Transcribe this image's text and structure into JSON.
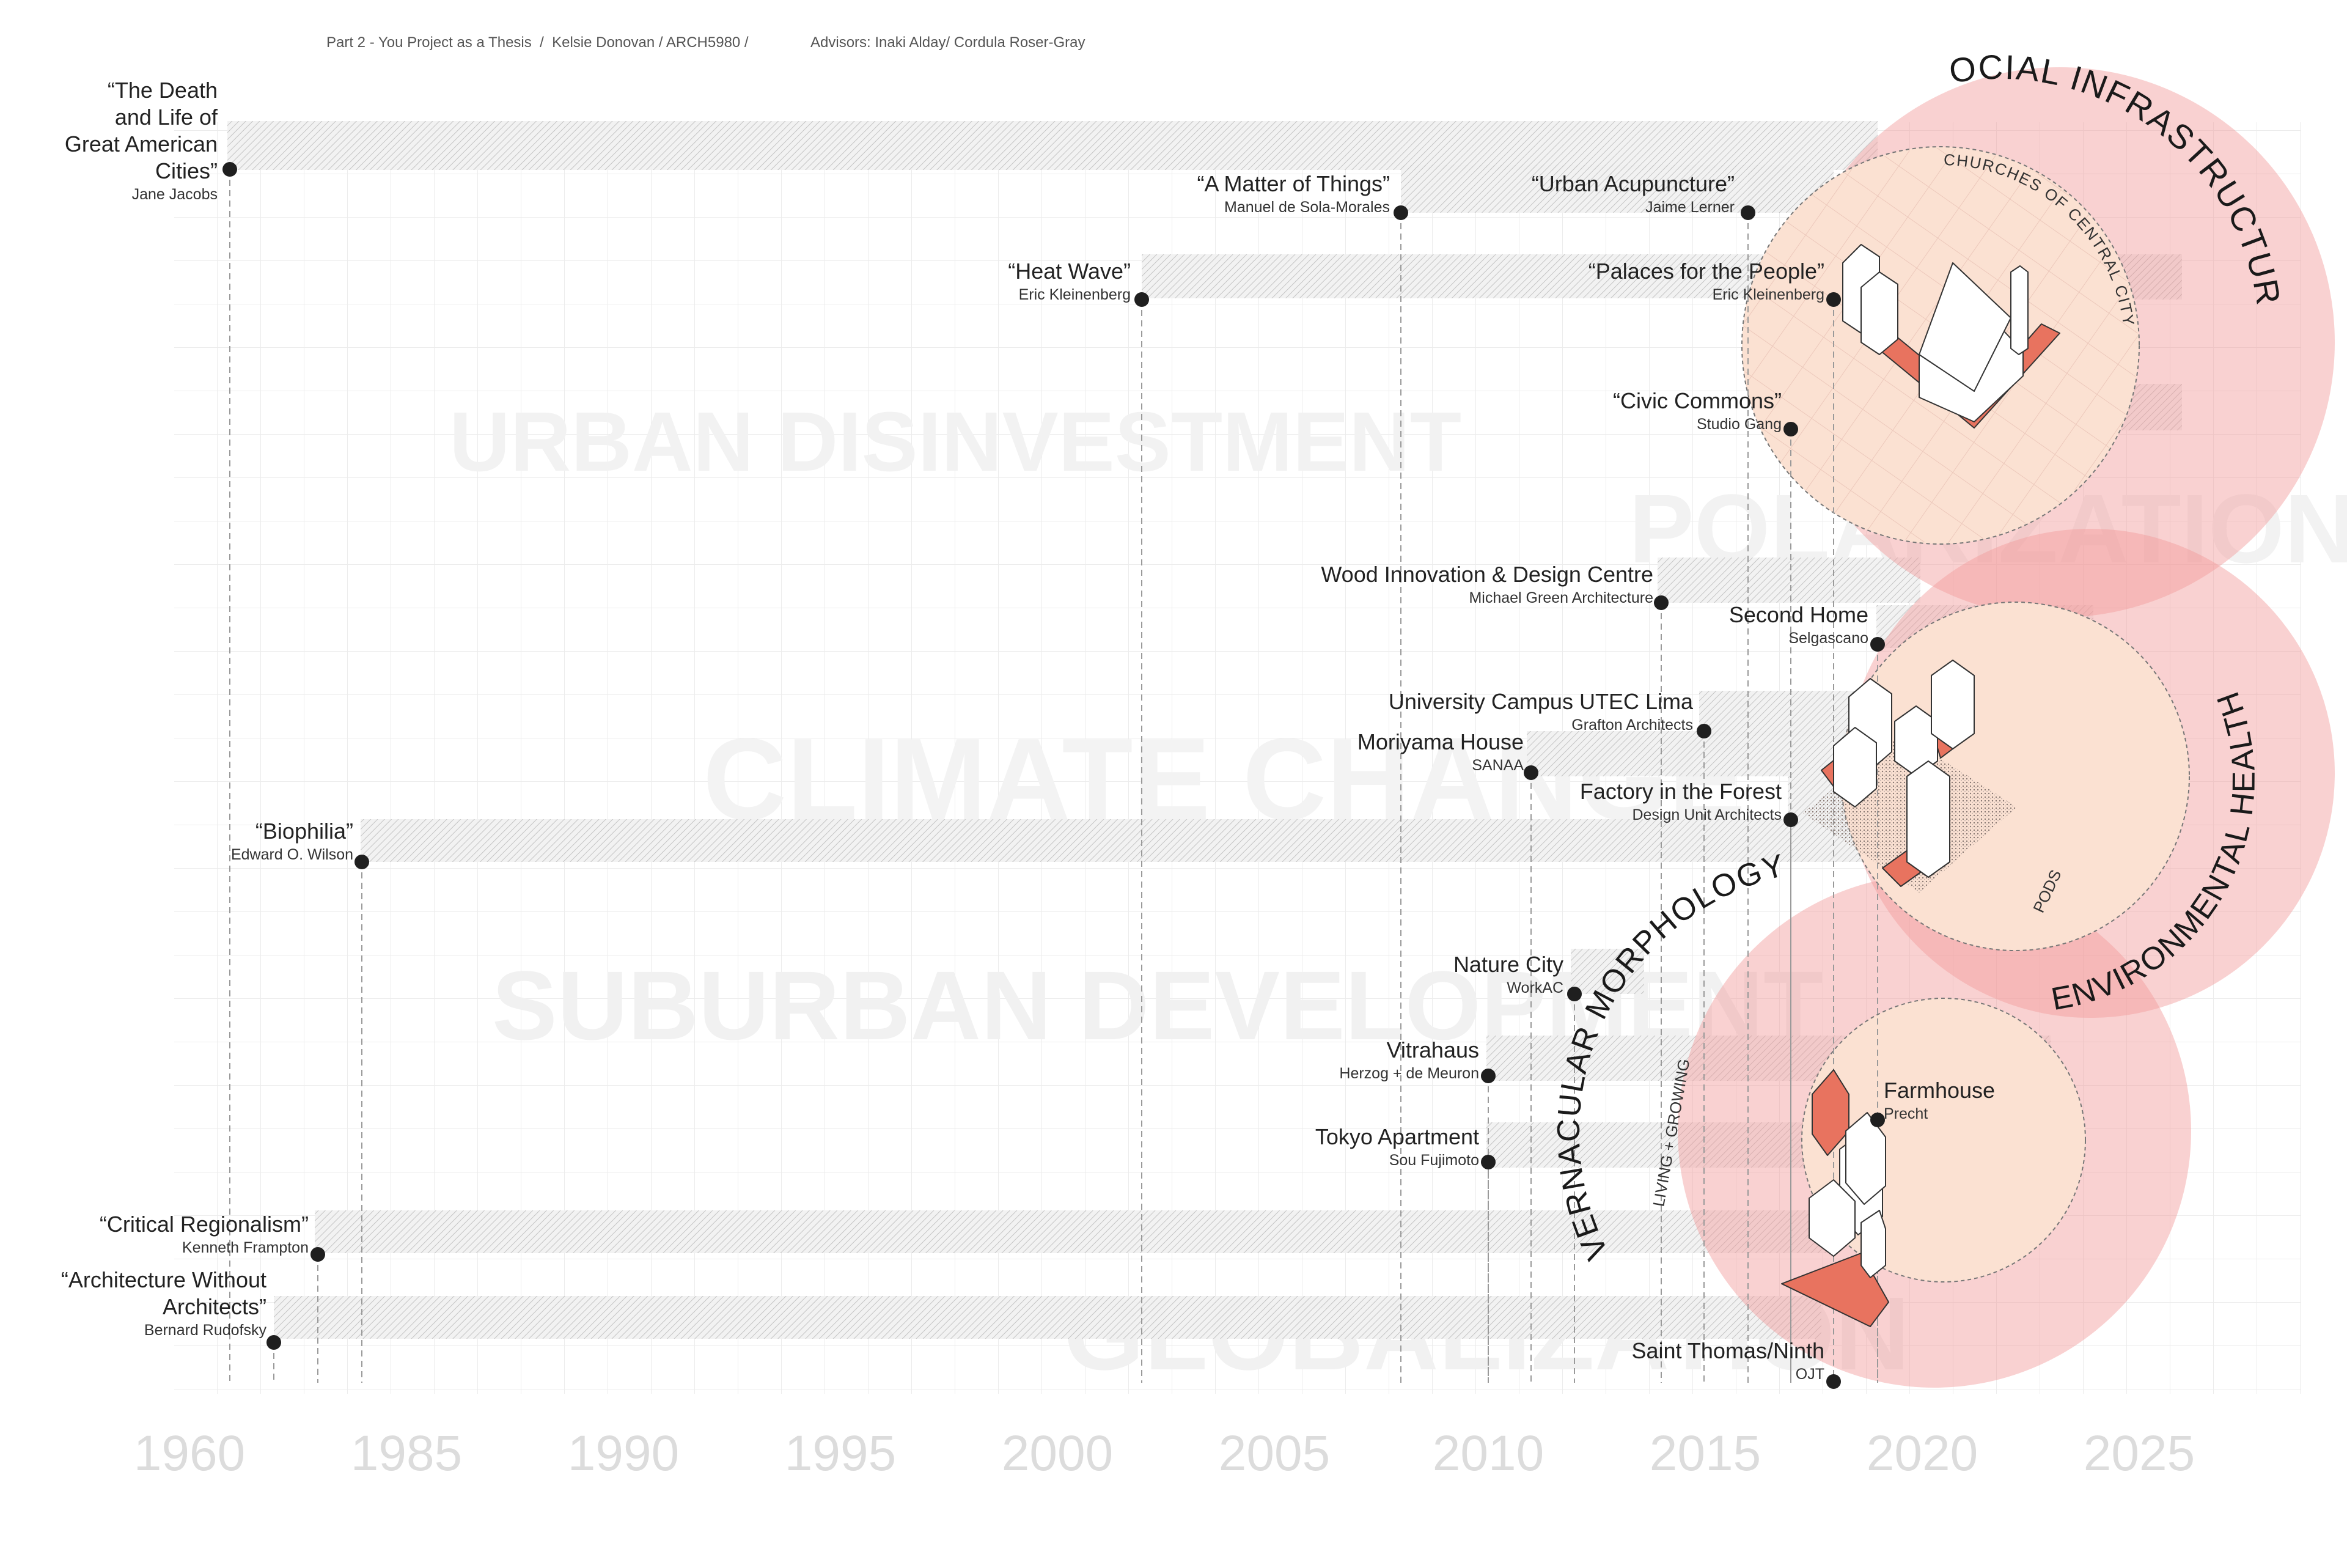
{
  "header": {
    "part": "Part 2 - You Project as a Thesis  /  Kelsie Donovan / ARCH5980 /",
    "advisors": "Advisors: Inaki Alday/ Cordula Roser-Gray"
  },
  "axis": {
    "ticks": [
      "1960",
      "1985",
      "1990",
      "1995",
      "2000",
      "2005",
      "2010",
      "2015",
      "2020",
      "2025"
    ]
  },
  "themes": [
    {
      "id": "urban",
      "text": "URBAN  DISINVESTMENT"
    },
    {
      "id": "polar",
      "text": "POLARIZATION"
    },
    {
      "id": "climate",
      "text": "CLIMATE  CHANGE"
    },
    {
      "id": "suburban",
      "text": "SUBURBAN  DEVELOPMENT"
    },
    {
      "id": "global",
      "text": "GLOBALIZATION"
    }
  ],
  "circles": [
    {
      "id": "social",
      "title": "SOCIAL  INFRASTRUCTURE",
      "subtitle": "CHURCHES  OF  CENTRAL  CITY"
    },
    {
      "id": "env",
      "title": "ENVIRONMENTAL  HEALTH",
      "subtitle": "PODS"
    },
    {
      "id": "vern",
      "title": "VERNACULAR  MORPHOLOGY",
      "subtitle": "LIVING + GROWING"
    }
  ],
  "items": [
    {
      "id": "death",
      "title_lines": [
        "“The Death",
        "and Life of",
        "Great American",
        "Cities”"
      ],
      "author": "Jane Jacobs"
    },
    {
      "id": "matter",
      "title_lines": [
        "“A Matter of Things”"
      ],
      "author": "Manuel de Sola-Morales"
    },
    {
      "id": "acup",
      "title_lines": [
        "“Urban Acupuncture”"
      ],
      "author": "Jaime Lerner"
    },
    {
      "id": "heat",
      "title_lines": [
        "“Heat Wave”"
      ],
      "author": "Eric Kleinenberg"
    },
    {
      "id": "palaces",
      "title_lines": [
        "“Palaces for the People”"
      ],
      "author": "Eric Kleinenberg"
    },
    {
      "id": "civic",
      "title_lines": [
        "“Civic Commons”"
      ],
      "author": "Studio Gang"
    },
    {
      "id": "wood",
      "title_lines": [
        "Wood Innovation & Design Centre"
      ],
      "author": "Michael Green Architecture"
    },
    {
      "id": "second",
      "title_lines": [
        "Second Home"
      ],
      "author": "Selgascano"
    },
    {
      "id": "utec",
      "title_lines": [
        "University Campus UTEC Lima"
      ],
      "author": "Grafton Architects"
    },
    {
      "id": "moriyama",
      "title_lines": [
        "Moriyama House"
      ],
      "author": "SANAA"
    },
    {
      "id": "factory",
      "title_lines": [
        "Factory in the Forest"
      ],
      "author": "Design Unit Architects"
    },
    {
      "id": "biophilia",
      "title_lines": [
        "“Biophilia”"
      ],
      "author": "Edward O. Wilson"
    },
    {
      "id": "nature",
      "title_lines": [
        "Nature City"
      ],
      "author": "WorkAC"
    },
    {
      "id": "vitra",
      "title_lines": [
        "Vitrahaus"
      ],
      "author": "Herzog + de Meuron"
    },
    {
      "id": "tokyo",
      "title_lines": [
        "Tokyo Apartment"
      ],
      "author": "Sou Fujimoto"
    },
    {
      "id": "farm",
      "title_lines": [
        "Farmhouse"
      ],
      "author": "Precht"
    },
    {
      "id": "critical",
      "title_lines": [
        "“Critical Regionalism”"
      ],
      "author": "Kenneth Frampton"
    },
    {
      "id": "without",
      "title_lines": [
        "“Architecture Without",
        "Architects”"
      ],
      "author": "Bernard Rudofsky"
    },
    {
      "id": "saint",
      "title_lines": [
        "Saint Thomas/Ninth"
      ],
      "author": "OJT"
    }
  ]
}
